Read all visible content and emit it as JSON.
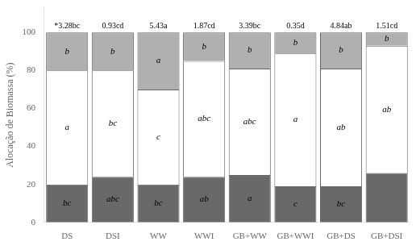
{
  "chart_data": {
    "type": "bar",
    "stacked": true,
    "categories": [
      "DS",
      "DSI",
      "WW",
      "WWI",
      "GB+WW",
      "GB+WWI",
      "GB+DS",
      "GB+DSI"
    ],
    "ylabel": "Alocação de Biomassa (%)",
    "ylim": [
      0,
      113
    ],
    "yticks": [
      0,
      20,
      40,
      60,
      80,
      100
    ],
    "grid": false,
    "series": [
      {
        "color": "#696969",
        "values": [
          20,
          24,
          20,
          24,
          25,
          19,
          19,
          26
        ],
        "value_labels": [
          "bc",
          "abc",
          "bc",
          "ab",
          "a",
          "c",
          "bc",
          null
        ]
      },
      {
        "color": "#ffffff",
        "values": [
          60,
          56,
          50,
          61,
          56,
          70,
          62,
          67
        ],
        "value_labels": [
          "a",
          "bc",
          "c",
          "abc",
          "abc",
          "a",
          "ab",
          "ab"
        ]
      },
      {
        "color": "#b0b0b0",
        "values": [
          20,
          20,
          30,
          15,
          19,
          11,
          19,
          7
        ],
        "value_labels": [
          "b",
          "b",
          "a",
          "b",
          "b",
          "b",
          "b",
          "b"
        ]
      }
    ],
    "total_labels": [
      "*3.28bc",
      "0.93cd",
      "5.43a",
      "1.87cd",
      "3.39bc",
      "0.35d",
      "4.84ab",
      "1.51cd"
    ]
  }
}
